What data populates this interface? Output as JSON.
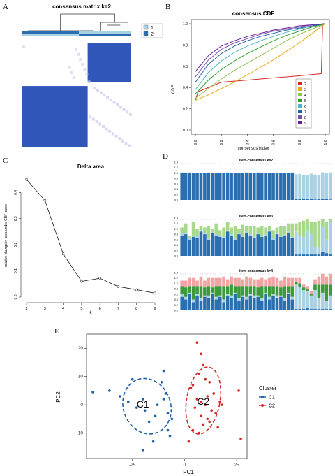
{
  "panels": {
    "a": {
      "label": "A"
    },
    "b": {
      "label": "B"
    },
    "c": {
      "label": "C"
    },
    "d": {
      "label": "D"
    },
    "e": {
      "label": "E"
    }
  },
  "colors": {
    "dark_blue": "#2a6faf",
    "light_blue": "#a9d0e3",
    "heat_blue": "#2f56b8",
    "light_green": "#a6d98a",
    "dark_green": "#3b9a3b",
    "pink": "#f2a3a3",
    "c1": "#1f5fa8",
    "c2": "#d42a2a"
  },
  "chart_data": [
    {
      "id": "A",
      "type": "heatmap",
      "title": "consensus matrix k=2",
      "legend": [
        "1",
        "2"
      ],
      "cluster_sizes": [
        6,
        14
      ]
    },
    {
      "id": "B",
      "type": "line",
      "title": "consensus CDF",
      "xlabel": "consensus index",
      "ylabel": "CDF",
      "xlim": [
        0,
        1
      ],
      "ylim": [
        0,
        1
      ],
      "xticks": [
        "0.0",
        "0.2",
        "0.4",
        "0.6",
        "0.8",
        "1.0"
      ],
      "yticks": [
        "0.0",
        "0.2",
        "0.4",
        "0.6",
        "0.8",
        "1.0"
      ],
      "legend_position": "bottom-right",
      "series": [
        {
          "name": "2",
          "color": "#d62728",
          "x": [
            0,
            0.02,
            0.2,
            0.4,
            0.6,
            0.8,
            0.97,
            0.98,
            1.0
          ],
          "y": [
            0.28,
            0.36,
            0.45,
            0.47,
            0.49,
            0.51,
            0.53,
            1.0,
            1.0
          ]
        },
        {
          "name": "3",
          "color": "#e6a817",
          "x": [
            0,
            0.1,
            0.2,
            0.3,
            0.4,
            0.5,
            0.6,
            0.7,
            0.8,
            0.9,
            1.0
          ],
          "y": [
            0.28,
            0.33,
            0.39,
            0.45,
            0.52,
            0.59,
            0.66,
            0.74,
            0.82,
            0.91,
            1.0
          ]
        },
        {
          "name": "4",
          "color": "#8bc34a",
          "x": [
            0,
            0.1,
            0.2,
            0.3,
            0.4,
            0.5,
            0.6,
            0.7,
            0.8,
            0.9,
            1.0
          ],
          "y": [
            0.3,
            0.39,
            0.48,
            0.56,
            0.63,
            0.7,
            0.77,
            0.84,
            0.9,
            0.95,
            1.0
          ]
        },
        {
          "name": "5",
          "color": "#2ca02c",
          "x": [
            0,
            0.1,
            0.2,
            0.3,
            0.4,
            0.5,
            0.6,
            0.7,
            0.8,
            0.9,
            1.0
          ],
          "y": [
            0.34,
            0.47,
            0.57,
            0.65,
            0.72,
            0.78,
            0.84,
            0.89,
            0.93,
            0.97,
            1.0
          ]
        },
        {
          "name": "6",
          "color": "#4fb3c9",
          "x": [
            0,
            0.1,
            0.2,
            0.3,
            0.4,
            0.5,
            0.6,
            0.7,
            0.8,
            0.9,
            1.0
          ],
          "y": [
            0.38,
            0.54,
            0.65,
            0.73,
            0.79,
            0.84,
            0.88,
            0.92,
            0.95,
            0.98,
            1.0
          ]
        },
        {
          "name": "7",
          "color": "#1f5fa8",
          "x": [
            0,
            0.1,
            0.2,
            0.3,
            0.4,
            0.5,
            0.6,
            0.7,
            0.8,
            0.9,
            1.0
          ],
          "y": [
            0.45,
            0.62,
            0.72,
            0.79,
            0.84,
            0.88,
            0.91,
            0.94,
            0.96,
            0.98,
            1.0
          ]
        },
        {
          "name": "8",
          "color": "#7b4fa3",
          "x": [
            0,
            0.1,
            0.2,
            0.3,
            0.4,
            0.5,
            0.6,
            0.7,
            0.8,
            0.9,
            1.0
          ],
          "y": [
            0.5,
            0.66,
            0.76,
            0.82,
            0.86,
            0.9,
            0.93,
            0.95,
            0.97,
            0.99,
            1.0
          ]
        },
        {
          "name": "9",
          "color": "#6a1b9a",
          "x": [
            0,
            0.1,
            0.2,
            0.3,
            0.4,
            0.5,
            0.6,
            0.7,
            0.8,
            0.9,
            1.0
          ],
          "y": [
            0.55,
            0.7,
            0.79,
            0.84,
            0.88,
            0.91,
            0.94,
            0.96,
            0.98,
            0.99,
            1.0
          ]
        }
      ]
    },
    {
      "id": "C",
      "type": "line",
      "title": "Delta area",
      "xlabel": "k",
      "ylabel": "relative change in area under CDF curve",
      "xlim": [
        2,
        9
      ],
      "ylim": [
        0,
        0.46
      ],
      "yticks": [
        "0.0",
        "0.1",
        "0.2",
        "0.3",
        "0.4"
      ],
      "x": [
        2,
        3,
        4,
        5,
        6,
        7,
        8,
        9
      ],
      "y": [
        0.45,
        0.37,
        0.165,
        0.06,
        0.072,
        0.04,
        0.028,
        0.015
      ]
    },
    {
      "id": "D",
      "type": "bar",
      "yticks": [
        "0.0",
        "0.2",
        "0.4",
        "0.6",
        "0.8",
        "1.0",
        "1.2",
        "1.4"
      ],
      "ylim": [
        0,
        1.45
      ],
      "panels": [
        {
          "title": "item-consensus k=2",
          "stacks": [
            [
              1.0,
              0.02
            ],
            [
              1.0,
              0.01
            ],
            [
              1.0,
              0.02
            ],
            [
              1.0,
              0.01
            ],
            [
              0.99,
              0.02
            ],
            [
              1.0,
              0.01
            ],
            [
              0.99,
              0.02
            ],
            [
              1.0,
              0.02
            ],
            [
              1.0,
              0.01
            ],
            [
              1.0,
              0.01
            ],
            [
              0.99,
              0.02
            ],
            [
              1.0,
              0.01
            ],
            [
              1.0,
              0.02
            ],
            [
              1.0,
              0.01
            ],
            [
              1.0,
              0.01
            ],
            [
              0.99,
              0.02
            ],
            [
              1.0,
              0.01
            ],
            [
              1.0,
              0.02
            ],
            [
              1.0,
              0.01
            ],
            [
              1.0,
              0.01
            ],
            [
              1.0,
              0.02
            ],
            [
              1.0,
              0.01
            ],
            [
              0.99,
              0.02
            ],
            [
              1.0,
              0.01
            ],
            [
              1.0,
              0.01
            ],
            [
              0.99,
              0.02
            ],
            [
              1.0,
              0.01
            ],
            [
              1.0,
              0.01
            ],
            [
              1.0,
              0.01
            ],
            [
              1.0,
              0.02
            ],
            [
              0.05,
              0.9
            ],
            [
              0.04,
              0.92
            ],
            [
              0.03,
              0.9
            ],
            [
              0.05,
              0.88
            ],
            [
              0.04,
              0.93
            ],
            [
              0.02,
              0.92
            ],
            [
              0.03,
              0.9
            ],
            [
              0.04,
              0.98
            ],
            [
              0.03,
              0.95
            ],
            [
              0.02,
              1.0
            ]
          ],
          "colors": [
            "#2a6faf",
            "#a9d0e3"
          ]
        },
        {
          "title": "item-consensus k=3",
          "stacks": [
            [
              0.75,
              0.1,
              0.2
            ],
            [
              0.8,
              0.05,
              0.35
            ],
            [
              0.6,
              0.05,
              0.1
            ],
            [
              0.7,
              0.05,
              0.5
            ],
            [
              0.65,
              0.1,
              0.25
            ],
            [
              0.9,
              0.05,
              0.15
            ],
            [
              0.8,
              0.05,
              0.2
            ],
            [
              0.6,
              0.05,
              0.45
            ],
            [
              0.85,
              0.05,
              0.1
            ],
            [
              0.75,
              0.05,
              0.4
            ],
            [
              0.7,
              0.05,
              0.2
            ],
            [
              0.65,
              0.05,
              0.35
            ],
            [
              0.9,
              0.05,
              0.3
            ],
            [
              0.75,
              0.05,
              0.25
            ],
            [
              0.6,
              0.05,
              0.45
            ],
            [
              0.8,
              0.05,
              0.15
            ],
            [
              0.7,
              0.05,
              0.4
            ],
            [
              0.85,
              0.05,
              0.2
            ],
            [
              0.75,
              0.05,
              0.3
            ],
            [
              0.65,
              0.05,
              0.4
            ],
            [
              0.8,
              0.05,
              0.2
            ],
            [
              0.7,
              0.05,
              0.35
            ],
            [
              0.75,
              0.05,
              0.25
            ],
            [
              0.9,
              0.05,
              0.15
            ],
            [
              0.6,
              0.05,
              0.3
            ],
            [
              0.8,
              0.05,
              0.2
            ],
            [
              0.7,
              0.05,
              0.35
            ],
            [
              0.75,
              0.05,
              0.3
            ],
            [
              0.85,
              0.05,
              0.3
            ],
            [
              0.65,
              0.05,
              0.5
            ],
            [
              0.05,
              0.85,
              0.3
            ],
            [
              0.05,
              0.7,
              0.5
            ],
            [
              0.05,
              0.65,
              0.6
            ],
            [
              0.05,
              0.9,
              0.4
            ],
            [
              0.05,
              0.75,
              0.45
            ],
            [
              0.05,
              0.3,
              0.9
            ],
            [
              0.05,
              0.25,
              1.0
            ],
            [
              0.15,
              0.9,
              0.3
            ],
            [
              0.1,
              0.5,
              0.65
            ],
            [
              0.05,
              1.2,
              0.1
            ]
          ],
          "colors": [
            "#2a6faf",
            "#a9d0e3",
            "#a6d98a"
          ]
        },
        {
          "title": "item-consensus k=4",
          "stacks": [
            [
              0.5,
              0.1,
              0.3,
              0.2
            ],
            [
              0.4,
              0.1,
              0.35,
              0.25
            ],
            [
              0.6,
              0.05,
              0.25,
              0.3
            ],
            [
              0.3,
              0.1,
              0.5,
              0.3
            ],
            [
              0.55,
              0.05,
              0.3,
              0.2
            ],
            [
              0.35,
              0.1,
              0.45,
              0.35
            ],
            [
              0.5,
              0.05,
              0.3,
              0.25
            ],
            [
              0.45,
              0.1,
              0.35,
              0.3
            ],
            [
              0.6,
              0.05,
              0.2,
              0.35
            ],
            [
              0.4,
              0.1,
              0.4,
              0.3
            ],
            [
              0.5,
              0.05,
              0.35,
              0.3
            ],
            [
              0.3,
              0.1,
              0.5,
              0.35
            ],
            [
              0.55,
              0.05,
              0.3,
              0.25
            ],
            [
              0.45,
              0.1,
              0.4,
              0.3
            ],
            [
              0.6,
              0.05,
              0.25,
              0.3
            ],
            [
              0.35,
              0.1,
              0.45,
              0.3
            ],
            [
              0.5,
              0.05,
              0.35,
              0.25
            ],
            [
              0.4,
              0.1,
              0.4,
              0.35
            ],
            [
              0.55,
              0.05,
              0.3,
              0.3
            ],
            [
              0.45,
              0.1,
              0.35,
              0.25
            ],
            [
              0.5,
              0.05,
              0.3,
              0.3
            ],
            [
              0.35,
              0.1,
              0.45,
              0.3
            ],
            [
              0.6,
              0.05,
              0.25,
              0.25
            ],
            [
              0.4,
              0.1,
              0.4,
              0.3
            ],
            [
              0.55,
              0.05,
              0.3,
              0.35
            ],
            [
              0.45,
              0.1,
              0.35,
              0.3
            ],
            [
              0.5,
              0.05,
              0.3,
              0.25
            ],
            [
              0.35,
              0.1,
              0.45,
              0.35
            ],
            [
              0.6,
              0.05,
              0.25,
              0.3
            ],
            [
              0.4,
              0.1,
              0.4,
              0.3
            ],
            [
              0.05,
              0.9,
              0.1,
              0.15
            ],
            [
              0.05,
              0.8,
              0.15,
              0.2
            ],
            [
              0.05,
              0.7,
              0.1,
              0.1
            ],
            [
              0.1,
              0.6,
              0.1,
              0.1
            ],
            [
              0.05,
              0.5,
              0.05,
              0.1
            ],
            [
              0.05,
              0.7,
              0.2,
              0.2
            ],
            [
              0.05,
              0.4,
              0.5,
              0.3
            ],
            [
              0.05,
              0.6,
              0.3,
              0.4
            ],
            [
              0.05,
              0.3,
              0.6,
              0.3
            ],
            [
              0.05,
              0.5,
              0.4,
              0.4
            ]
          ],
          "colors": [
            "#2a6faf",
            "#a9d0e3",
            "#3b9a3b",
            "#f2a3a3"
          ]
        }
      ]
    },
    {
      "id": "E",
      "type": "scatter",
      "xlabel": "PC1",
      "ylabel": "PC2",
      "xlim": [
        -47,
        30
      ],
      "ylim": [
        -19,
        25
      ],
      "xticks": [
        -25,
        0,
        25
      ],
      "yticks": [
        -10,
        0,
        10,
        20
      ],
      "legend_title": "Cluster",
      "legend_position": "right",
      "series": [
        {
          "name": "C1",
          "color": "#1f5fa8",
          "label": "C1",
          "x": [
            -44,
            -36,
            -31,
            -27,
            -20,
            -23,
            -19,
            -17,
            -15,
            -13,
            -11,
            -10,
            -9,
            -8,
            -6,
            -8,
            -7,
            -20,
            -10,
            -25,
            -14
          ],
          "y": [
            4.5,
            5,
            3,
            1,
            2,
            -1,
            -2,
            -6,
            -13,
            0,
            8,
            12,
            4,
            -3,
            -5,
            -9,
            -11,
            -16,
            2,
            9,
            -4
          ]
        },
        {
          "name": "C2",
          "color": "#d42a2a",
          "label": "C2",
          "x": [
            6,
            8,
            9,
            7,
            10,
            4,
            3,
            12,
            14,
            11,
            6,
            8,
            10,
            5,
            13,
            15,
            18,
            16,
            11,
            9,
            7,
            4,
            2,
            26,
            27,
            12,
            8,
            17
          ],
          "y": [
            22,
            18,
            14,
            11,
            9,
            7,
            6,
            8,
            4,
            3,
            2,
            1,
            0,
            -1,
            -2,
            -3,
            0,
            -8,
            -5,
            -7,
            -10,
            -9,
            -13,
            5,
            -12,
            -6,
            -4,
            1
          ]
        }
      ]
    }
  ]
}
